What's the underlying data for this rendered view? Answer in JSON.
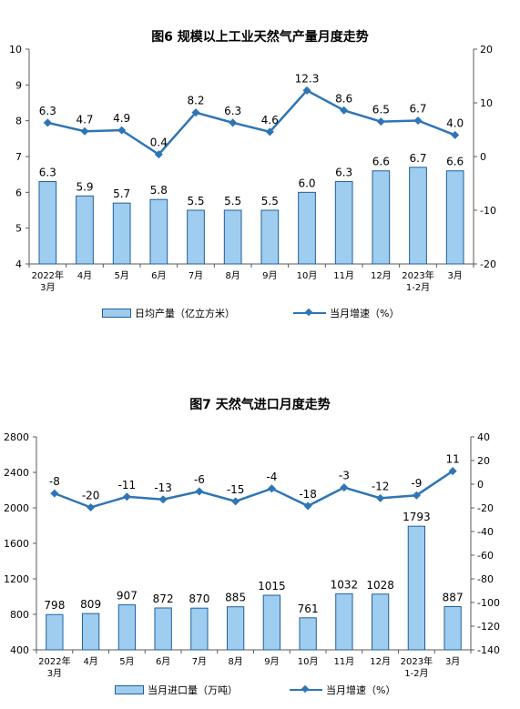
{
  "chart_data": [
    {
      "type": "bar",
      "title": "图6  规模以上工业天然气产量月度走势",
      "categories": [
        "2022年\n3月",
        "4月",
        "5月",
        "6月",
        "7月",
        "8月",
        "9月",
        "10月",
        "11月",
        "12月",
        "2023年\n1-2月",
        "3月"
      ],
      "series": [
        {
          "name": "日均产量（亿立方米）",
          "type": "bar",
          "axis": "left",
          "values": [
            6.3,
            5.9,
            5.7,
            5.8,
            5.5,
            5.5,
            5.5,
            6.0,
            6.3,
            6.6,
            6.7,
            6.6
          ]
        },
        {
          "name": "当月增速（%）",
          "type": "line",
          "axis": "right",
          "values": [
            6.3,
            4.7,
            4.9,
            0.4,
            8.2,
            6.3,
            4.6,
            12.3,
            8.6,
            6.5,
            6.7,
            4.0
          ]
        }
      ],
      "ylim_left": [
        4,
        10
      ],
      "yticks_left": [
        4,
        5,
        6,
        7,
        8,
        9,
        10
      ],
      "ylim_right": [
        -20,
        20
      ],
      "yticks_right": [
        -20,
        -10,
        0,
        10,
        20
      ],
      "label_decimals": 1,
      "grid": false,
      "legend_position": "bottom"
    },
    {
      "type": "bar",
      "title": "图7  天然气进口月度走势",
      "categories": [
        "2022年\n3月",
        "4月",
        "5月",
        "6月",
        "7月",
        "8月",
        "9月",
        "10月",
        "11月",
        "12月",
        "2023年\n1-2月",
        "3月"
      ],
      "series": [
        {
          "name": "当月进口量（万吨）",
          "type": "bar",
          "axis": "left",
          "values": [
            798,
            809,
            907,
            872,
            870,
            885,
            1015,
            761,
            1032,
            1028,
            1793,
            887
          ]
        },
        {
          "name": "当月增速（%）",
          "type": "line",
          "axis": "right",
          "values": [
            -7.8,
            -19.6,
            -10.6,
            -12.9,
            -6.1,
            -14.5,
            -3.7,
            -18.4,
            -2.8,
            -11.8,
            -9.4,
            11.1
          ]
        }
      ],
      "ylim_left": [
        400,
        2800
      ],
      "yticks_left": [
        400,
        800,
        1200,
        1600,
        2000,
        2400,
        2800
      ],
      "ylim_right": [
        -140,
        40
      ],
      "yticks_right": [
        -140,
        -120,
        -100,
        -80,
        -60,
        -40,
        -20,
        0,
        20,
        40
      ],
      "label_decimals": 0,
      "grid": false,
      "legend_position": "bottom"
    }
  ],
  "colors": {
    "bar_fill": "#9fcdf0",
    "bar_stroke": "#1f5f9a",
    "line": "#2e75b6",
    "axis": "#595959"
  }
}
